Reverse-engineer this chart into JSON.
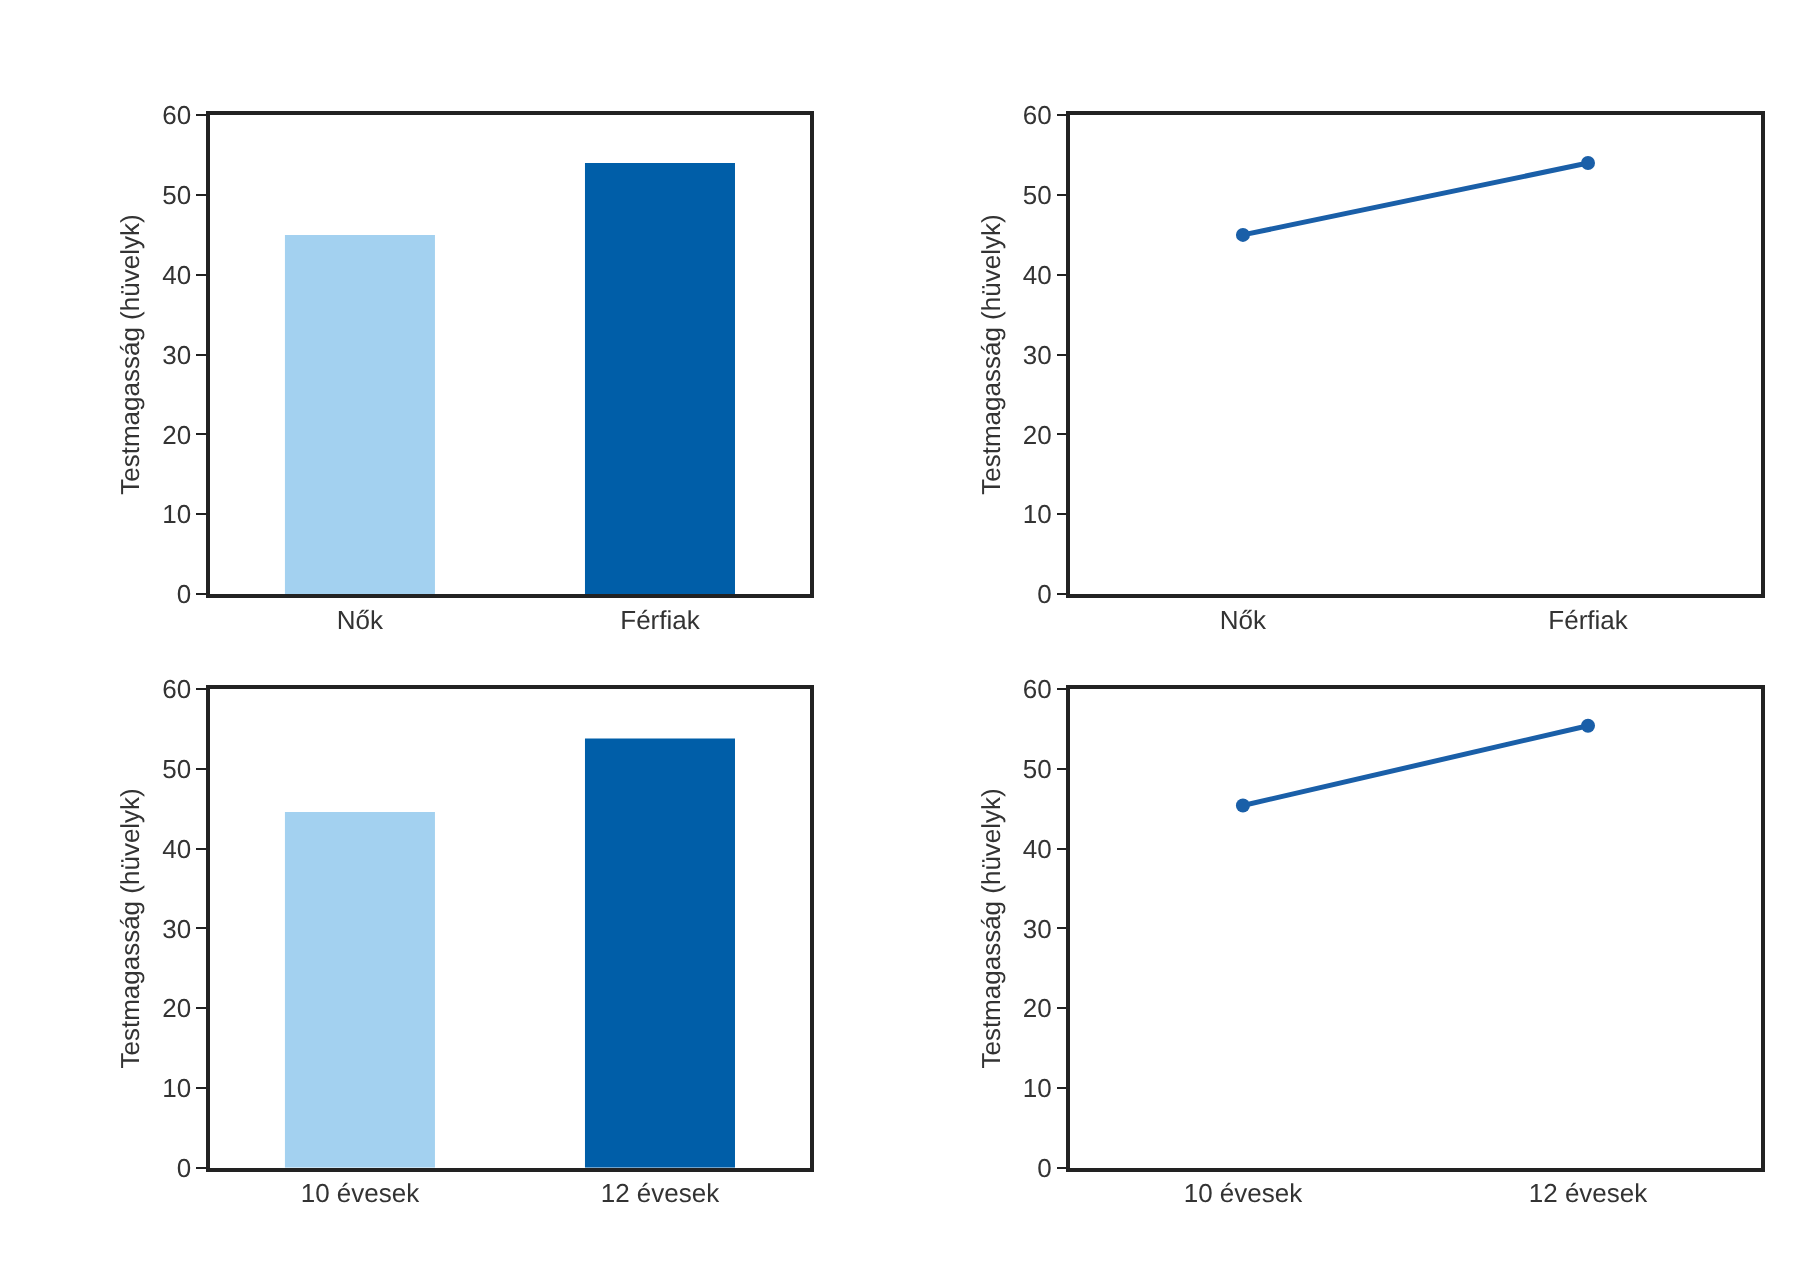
{
  "chart_data": [
    {
      "type": "bar",
      "ylabel": "Testmagasság (hüvelyk)",
      "categories": [
        "Nők",
        "Férfiak"
      ],
      "values": [
        45,
        54
      ],
      "colors": [
        "#a3d1f0",
        "#005ea8"
      ],
      "ylim": [
        0,
        60
      ],
      "yticks": [
        0,
        10,
        20,
        30,
        40,
        50,
        60
      ]
    },
    {
      "type": "line",
      "ylabel": "Testmagasság (hüvelyk)",
      "categories": [
        "Nők",
        "Férfiak"
      ],
      "series": [
        {
          "color": "#1a5fa8",
          "values": [
            45,
            54
          ]
        }
      ],
      "marker": "circle",
      "line_style": "solid",
      "ylim": [
        0,
        60
      ],
      "yticks": [
        0,
        10,
        20,
        30,
        40,
        50,
        60
      ]
    },
    {
      "type": "bar",
      "ylabel": "Testmagasság (hüvelyk)",
      "categories": [
        "10 évesek",
        "12 évesek"
      ],
      "values": [
        44.6,
        53.8
      ],
      "colors": [
        "#a3d1f0",
        "#005ea8"
      ],
      "ylim": [
        0,
        60
      ],
      "yticks": [
        0,
        10,
        20,
        30,
        40,
        50,
        60
      ]
    },
    {
      "type": "line",
      "ylabel": "Testmagasság (hüvelyk)",
      "categories": [
        "10 évesek",
        "12 évesek"
      ],
      "series": [
        {
          "color": "#1a5fa8",
          "values": [
            45.4,
            55.4
          ]
        }
      ],
      "marker": "circle",
      "line_style": "solid",
      "ylim": [
        0,
        60
      ],
      "yticks": [
        0,
        10,
        20,
        30,
        40,
        50,
        60
      ]
    }
  ]
}
